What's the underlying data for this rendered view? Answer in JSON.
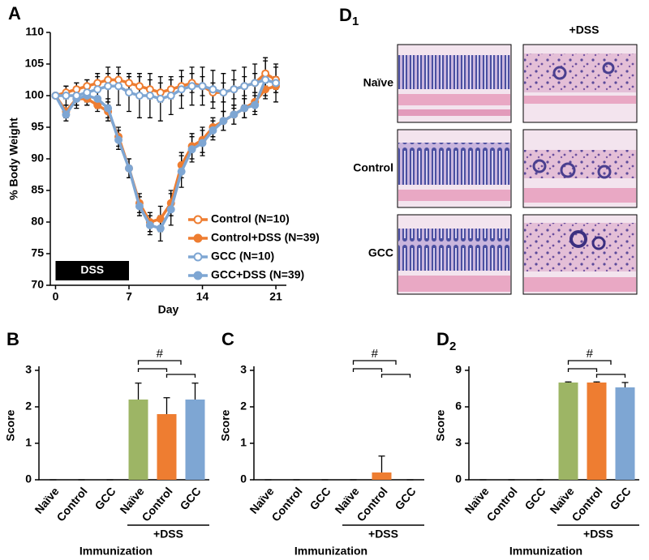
{
  "chart_data": [
    {
      "type": "line",
      "panel": "A",
      "x_label": "Day",
      "y_label": "% Body Weight",
      "x": [
        0,
        1,
        2,
        3,
        4,
        5,
        6,
        7,
        8,
        9,
        10,
        11,
        12,
        13,
        14,
        15,
        16,
        17,
        18,
        19,
        20,
        21
      ],
      "xlim": [
        -0.5,
        22
      ],
      "ylim": [
        70,
        110
      ],
      "xticks": [
        0,
        7,
        14,
        21
      ],
      "yticks": [
        70,
        75,
        80,
        85,
        90,
        95,
        100,
        105,
        110
      ],
      "dss_period": {
        "label": "DSS",
        "start": 0,
        "end": 7
      },
      "legend": "lower right",
      "series": [
        {
          "name": "Control+DSS (N=39)",
          "color": "#ee7d31",
          "marker": "filled",
          "values": [
            100,
            97.5,
            99.5,
            99.5,
            98.5,
            97.5,
            93.5,
            88.5,
            83,
            80,
            80.5,
            83,
            89,
            92,
            93,
            95,
            96,
            97,
            98,
            99,
            101,
            101.5
          ],
          "errors": [
            0,
            1,
            1,
            1,
            1,
            1.5,
            1.5,
            1.5,
            1.5,
            1.5,
            2,
            2,
            2,
            2,
            2,
            1.5,
            1.5,
            1.5,
            1.5,
            1.5,
            1,
            1
          ]
        },
        {
          "name": "GCC+DSS (N=39)",
          "color": "#7ea6d3",
          "marker": "filled",
          "values": [
            100,
            97,
            99.5,
            100,
            99.5,
            98,
            93,
            88.5,
            82.5,
            79.5,
            79,
            82,
            88,
            91.5,
            92.5,
            94.5,
            96,
            97,
            98,
            98.5,
            102.5,
            102
          ],
          "errors": [
            0,
            1,
            1,
            1,
            1.5,
            1.5,
            1.5,
            1.5,
            1.5,
            1.5,
            2,
            2.5,
            2.5,
            2,
            2,
            1.5,
            1.5,
            1.5,
            1.5,
            1.5,
            1,
            1
          ]
        },
        {
          "name": "Control (N=10)",
          "color": "#ee7d31",
          "marker": "open",
          "values": [
            100,
            100.5,
            101,
            101.5,
            102,
            102.5,
            102.5,
            102,
            101.5,
            101,
            100.5,
            101,
            101.5,
            102,
            101.5,
            100.5,
            100.5,
            101,
            101.5,
            102,
            103.5,
            102.5
          ],
          "errors": [
            0,
            1,
            1,
            1,
            1,
            1,
            1,
            1,
            1.5,
            1.5,
            1.5,
            1.5,
            1.5,
            1.5,
            1.5,
            1.5,
            1.5,
            1.5,
            1.5,
            1.5,
            2.5,
            2
          ]
        },
        {
          "name": "GCC (N=10)",
          "color": "#7ea6d3",
          "marker": "open",
          "values": [
            100,
            100,
            100,
            100.5,
            101,
            101.5,
            101.5,
            100.5,
            100,
            100,
            99.5,
            100,
            101,
            101.5,
            101.5,
            101,
            100.5,
            101,
            101.5,
            102,
            102.5,
            102
          ],
          "errors": [
            0,
            1.5,
            2,
            2,
            2.5,
            3,
            3,
            3,
            3.5,
            3.5,
            3.5,
            3,
            3,
            3,
            3,
            3,
            3,
            3,
            3,
            3,
            3,
            3
          ]
        }
      ]
    },
    {
      "type": "bar",
      "panel": "B",
      "y_label": "Score",
      "x_label": "Immunization",
      "group_label": "+DSS",
      "significance": "#",
      "categories": [
        "Naïve",
        "Control",
        "GCC",
        "Naïve",
        "Control",
        "GCC"
      ],
      "values": [
        0,
        0,
        0,
        2.2,
        1.8,
        2.2
      ],
      "errors": [
        0,
        0,
        0,
        0.45,
        0.45,
        0.45
      ],
      "colors": [
        "#9db565",
        "#ee7d31",
        "#7ea6d3",
        "#9db565",
        "#ee7d31",
        "#7ea6d3"
      ],
      "ylim": [
        0,
        3
      ],
      "yticks": [
        0,
        1,
        2,
        3
      ]
    },
    {
      "type": "bar",
      "panel": "C",
      "y_label": "Score",
      "x_label": "Immunization",
      "group_label": "+DSS",
      "significance": "#",
      "categories": [
        "Naïve",
        "Control",
        "GCC",
        "Naïve",
        "Control",
        "GCC"
      ],
      "values": [
        0,
        0,
        0,
        0,
        0.2,
        0
      ],
      "errors": [
        0,
        0,
        0,
        0,
        0.45,
        0
      ],
      "colors": [
        "#9db565",
        "#ee7d31",
        "#7ea6d3",
        "#9db565",
        "#ee7d31",
        "#7ea6d3"
      ],
      "ylim": [
        0,
        3
      ],
      "yticks": [
        0,
        1,
        2,
        3
      ]
    },
    {
      "type": "bar",
      "panel": "D",
      "panel_subscript": "2",
      "y_label": "Score",
      "x_label": "Immunization",
      "group_label": "+DSS",
      "significance": "#",
      "categories": [
        "Naïve",
        "Control",
        "GCC",
        "Naïve",
        "Control",
        "GCC"
      ],
      "values": [
        0,
        0,
        0,
        8,
        8,
        7.6
      ],
      "errors": [
        0,
        0,
        0,
        0.05,
        0.05,
        0.4
      ],
      "colors": [
        "#9db565",
        "#ee7d31",
        "#7ea6d3",
        "#9db565",
        "#ee7d31",
        "#7ea6d3"
      ],
      "ylim": [
        0,
        9
      ],
      "yticks": [
        0,
        3,
        6,
        9
      ]
    }
  ],
  "histology": {
    "panel": "D",
    "panel_subscript": "1",
    "column_header": "+DSS",
    "row_labels": [
      "Naïve",
      "Control",
      "GCC"
    ]
  }
}
